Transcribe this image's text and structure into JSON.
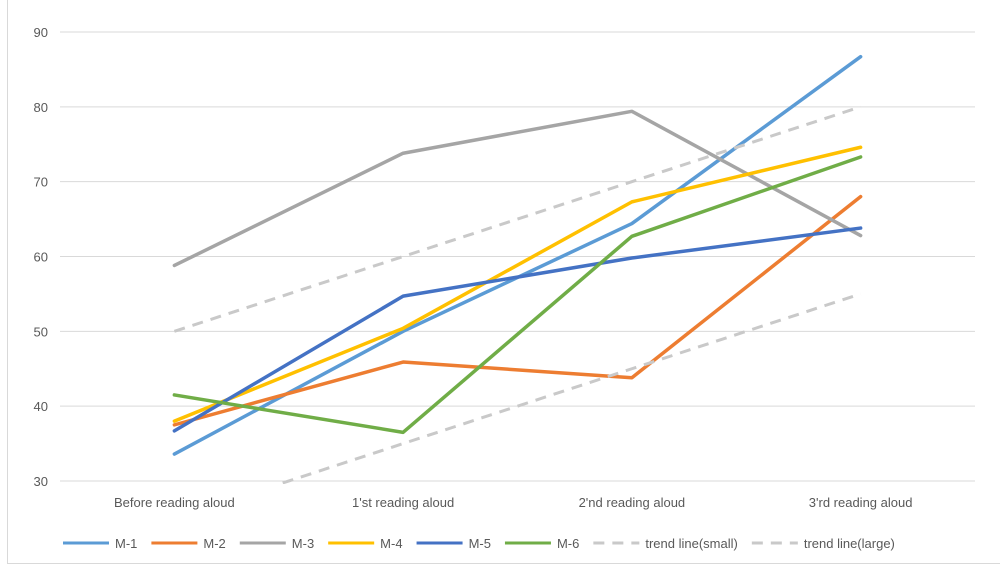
{
  "chart_data": {
    "type": "line",
    "title": "",
    "xlabel": "",
    "ylabel": "",
    "categories": [
      "Before reading aloud",
      "1'st reading aloud",
      "2'nd reading aloud",
      "3'rd reading aloud"
    ],
    "ylim": [
      30,
      90
    ],
    "yticks": [
      30,
      40,
      50,
      60,
      70,
      80,
      90
    ],
    "grid": true,
    "legend": "bottom",
    "series": [
      {
        "name": "M-1",
        "color": "#5B9BD5",
        "dashed": false,
        "values": [
          33.6,
          50.0,
          64.4,
          86.7
        ]
      },
      {
        "name": "M-2",
        "color": "#ED7D31",
        "dashed": false,
        "values": [
          37.5,
          45.9,
          43.8,
          68.0
        ]
      },
      {
        "name": "M-3",
        "color": "#A5A5A5",
        "dashed": false,
        "values": [
          58.8,
          73.8,
          79.4,
          62.8
        ]
      },
      {
        "name": "M-4",
        "color": "#FFC000",
        "dashed": false,
        "values": [
          38.0,
          50.4,
          67.3,
          74.6
        ]
      },
      {
        "name": "M-5",
        "color": "#4472C4",
        "dashed": false,
        "values": [
          36.7,
          54.7,
          59.8,
          63.8
        ]
      },
      {
        "name": "M-6",
        "color": "#70AD47",
        "dashed": false,
        "values": [
          41.5,
          36.5,
          62.7,
          73.3
        ]
      },
      {
        "name": "trend line(small)",
        "color": "#C9C9C9",
        "dashed": true,
        "values": [
          25.0,
          35.0,
          45.0,
          55.0
        ]
      },
      {
        "name": "trend line(large)",
        "color": "#C9C9C9",
        "dashed": true,
        "values": [
          50.0,
          60.0,
          70.0,
          80.0
        ]
      }
    ]
  }
}
